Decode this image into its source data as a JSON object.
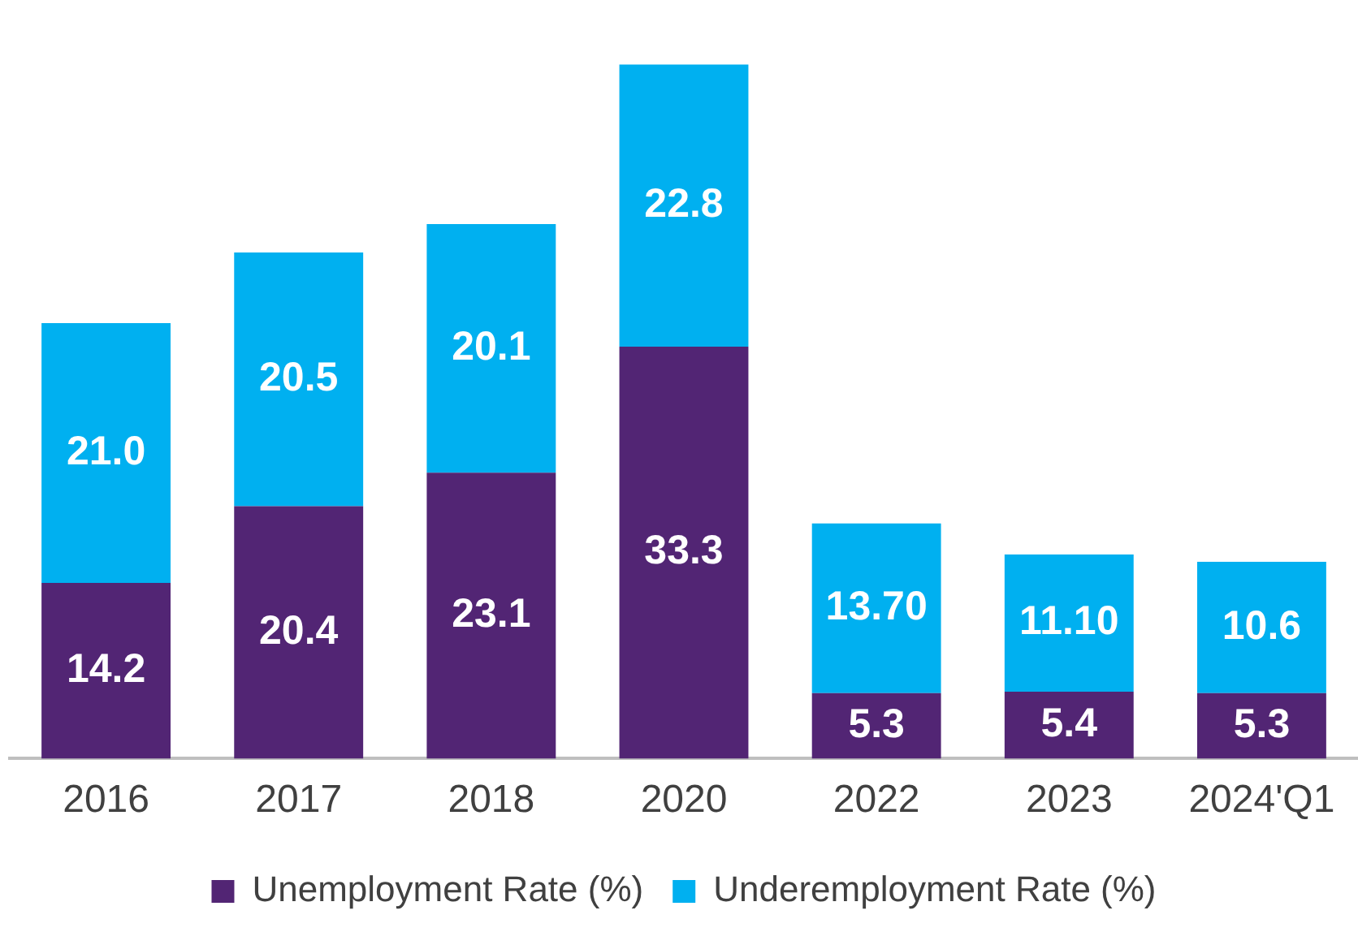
{
  "chart_data": {
    "type": "bar",
    "stacked": true,
    "categories": [
      "2016",
      "2017",
      "2018",
      "2020",
      "2022",
      "2023",
      "2024'Q1"
    ],
    "series": [
      {
        "name": "Unemployment Rate (%)",
        "color": "#522574",
        "values": [
          14.2,
          20.4,
          23.1,
          33.3,
          5.3,
          5.4,
          5.3
        ],
        "value_labels": [
          "14.2",
          "20.4",
          "23.1",
          "33.3",
          "5.3",
          "5.4",
          "5.3"
        ]
      },
      {
        "name": "Underemployment Rate (%)",
        "color": "#00b0f0",
        "values": [
          21.0,
          20.5,
          20.1,
          22.8,
          13.7,
          11.1,
          10.6
        ],
        "value_labels": [
          "21.0",
          "20.5",
          "20.1",
          "22.8",
          "13.70",
          "11.10",
          "10.6"
        ]
      }
    ],
    "legend": "bottom",
    "grid": false
  }
}
